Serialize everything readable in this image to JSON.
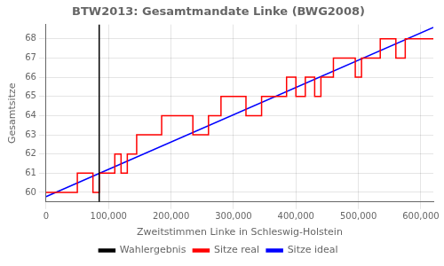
{
  "chart_data": {
    "type": "line",
    "title": "BTW2013: Gesamtmandate Linke (BWG2008)",
    "xlabel": "Zweitstimmen Linke in Schleswig-Holstein",
    "ylabel": "Gesamtsitze",
    "xlim": [
      0,
      620000
    ],
    "ylim": [
      59.5,
      68.75
    ],
    "xticks": [
      0,
      {
        "value": 100000,
        "label": "100,000"
      },
      {
        "value": 200000,
        "label": "200,000"
      },
      {
        "value": 300000,
        "label": "300,000"
      },
      {
        "value": 400000,
        "label": "400,000"
      },
      {
        "value": 500000,
        "label": "500,000"
      },
      {
        "value": 600000,
        "label": "600,000"
      }
    ],
    "yticks": [
      60,
      61,
      62,
      63,
      64,
      65,
      66,
      67,
      68
    ],
    "grid": true,
    "legend": "bottom",
    "series": [
      {
        "name": "Sitze real",
        "color": "red",
        "type": "line",
        "x": [
          0,
          50000,
          50000,
          75000,
          75000,
          85000,
          85000,
          110000,
          110000,
          120000,
          120000,
          130000,
          130000,
          145000,
          145000,
          185000,
          185000,
          235000,
          235000,
          260000,
          260000,
          280000,
          280000,
          320000,
          320000,
          345000,
          345000,
          385000,
          385000,
          400000,
          400000,
          415000,
          415000,
          430000,
          430000,
          440000,
          440000,
          460000,
          460000,
          495000,
          495000,
          505000,
          505000,
          535000,
          535000,
          560000,
          560000,
          575000,
          575000,
          620000
        ],
        "values": [
          60,
          60,
          61,
          61,
          60,
          60,
          61,
          61,
          62,
          62,
          61,
          61,
          62,
          62,
          63,
          63,
          64,
          64,
          63,
          63,
          64,
          64,
          65,
          65,
          64,
          64,
          65,
          65,
          66,
          66,
          65,
          65,
          66,
          66,
          65,
          65,
          66,
          66,
          67,
          67,
          66,
          66,
          67,
          67,
          68,
          68,
          67,
          67,
          68,
          68
        ]
      },
      {
        "name": "Sitze ideal",
        "color": "blue",
        "type": "line",
        "x": [
          0,
          620000
        ],
        "values": [
          59.78,
          68.6
        ]
      },
      {
        "name": "Wahlergebnis",
        "color": "black",
        "type": "vline",
        "x": [
          85000
        ]
      }
    ]
  }
}
